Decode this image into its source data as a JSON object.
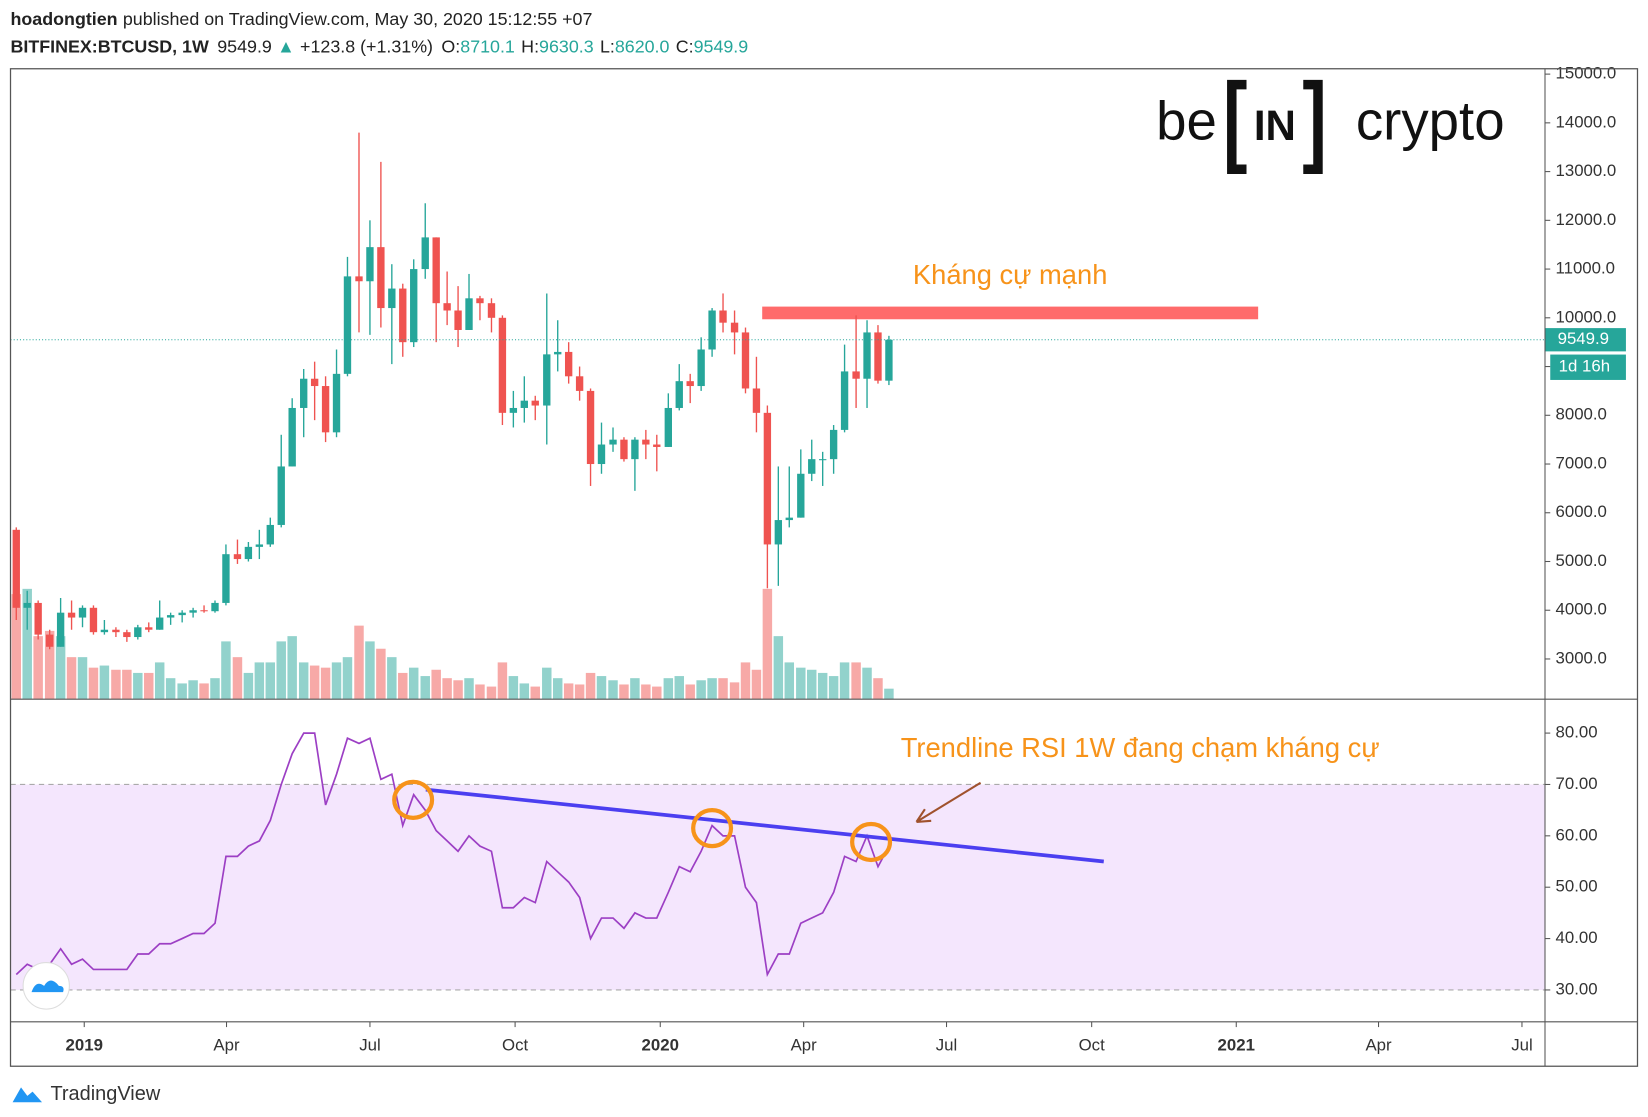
{
  "header": {
    "author": "hoadongtien",
    "published": "published on TradingView.com, May 30, 2020 15:12:55 +07",
    "symbol": "BITFINEX:BTCUSD, 1W",
    "last": "9549.9",
    "arrow": "▲",
    "change": "+123.8 (+1.31%)",
    "o_label": "O:",
    "o_value": "8710.1",
    "h_label": "H:",
    "h_value": "9630.3",
    "l_label": "L:",
    "l_value": "8620.0",
    "c_label": "C:",
    "c_value": "9549.9"
  },
  "logo": {
    "left": "be",
    "middle": "IN",
    "right": "crypto"
  },
  "footer": "TradingView",
  "chart_data": {
    "type": "candlestick",
    "up_color": "#26a69a",
    "down_color": "#ef5350",
    "x": [
      2018.882,
      2018.901,
      2018.92,
      2018.94,
      2018.959,
      2018.978,
      2018.997,
      2019.016,
      2019.035,
      2019.055,
      2019.074,
      2019.093,
      2019.112,
      2019.131,
      2019.15,
      2019.17,
      2019.189,
      2019.208,
      2019.227,
      2019.246,
      2019.266,
      2019.285,
      2019.304,
      2019.323,
      2019.342,
      2019.361,
      2019.381,
      2019.4,
      2019.419,
      2019.438,
      2019.457,
      2019.477,
      2019.496,
      2019.515,
      2019.534,
      2019.553,
      2019.572,
      2019.592,
      2019.611,
      2019.63,
      2019.649,
      2019.668,
      2019.687,
      2019.707,
      2019.726,
      2019.745,
      2019.764,
      2019.783,
      2019.803,
      2019.822,
      2019.841,
      2019.86,
      2019.879,
      2019.898,
      2019.918,
      2019.937,
      2019.956,
      2019.975,
      2019.994,
      2020.014,
      2020.033,
      2020.052,
      2020.071,
      2020.09,
      2020.109,
      2020.129,
      2020.148,
      2020.167,
      2020.186,
      2020.205,
      2020.224,
      2020.244,
      2020.263,
      2020.282,
      2020.301,
      2020.32,
      2020.34,
      2020.359,
      2020.378,
      2020.397
    ],
    "open": [
      5650,
      4050,
      4150,
      3500,
      3250,
      3950,
      3850,
      4050,
      3550,
      3600,
      3550,
      3450,
      3650,
      3600,
      3850,
      3900,
      3950,
      4000,
      3980,
      4150,
      5150,
      5050,
      5300,
      5350,
      5750,
      6950,
      8150,
      8750,
      8600,
      7650,
      8850,
      10850,
      10750,
      11450,
      10200,
      10600,
      9500,
      11000,
      11650,
      10300,
      10150,
      9750,
      10400,
      10300,
      10000,
      8050,
      8150,
      8300,
      8200,
      9250,
      9300,
      8800,
      8500,
      7000,
      7400,
      7500,
      7100,
      7500,
      7400,
      7350,
      8150,
      8700,
      8600,
      9350,
      10150,
      9900,
      9700,
      8550,
      8050,
      5350,
      5850,
      5900,
      6800,
      7100,
      7100,
      7700,
      8900,
      8750,
      9700,
      8710.1
    ],
    "high": [
      5700,
      4400,
      4200,
      3600,
      4250,
      4200,
      4100,
      4100,
      3800,
      3650,
      3600,
      3700,
      3750,
      4200,
      3950,
      4000,
      4050,
      4100,
      4200,
      5350,
      5450,
      5400,
      5650,
      5900,
      7600,
      8350,
      8950,
      9100,
      8800,
      9350,
      11250,
      13800,
      12000,
      13200,
      11100,
      10700,
      11200,
      12350,
      11650,
      10950,
      10650,
      10900,
      10450,
      10400,
      10050,
      8500,
      8800,
      8400,
      10500,
      9950,
      9500,
      9000,
      8550,
      7850,
      7750,
      7550,
      7550,
      7700,
      7600,
      8450,
      9050,
      8850,
      9600,
      10200,
      10500,
      10150,
      9800,
      9200,
      8200,
      6950,
      6950,
      7300,
      7500,
      7250,
      7800,
      9450,
      10050,
      9950,
      9850,
      9630.3
    ],
    "low": [
      3800,
      3600,
      3400,
      3200,
      3250,
      3600,
      3650,
      3500,
      3500,
      3450,
      3350,
      3400,
      3550,
      3600,
      3700,
      3750,
      3850,
      3950,
      3950,
      4100,
      4950,
      5000,
      5050,
      5300,
      5700,
      6950,
      7550,
      7900,
      7450,
      7550,
      8800,
      9700,
      9650,
      9800,
      9050,
      9200,
      9400,
      10800,
      9500,
      9850,
      9400,
      9750,
      9950,
      9700,
      7800,
      7750,
      7850,
      7900,
      7400,
      8900,
      8650,
      8300,
      6550,
      6800,
      7250,
      7050,
      6450,
      7100,
      6850,
      7350,
      8100,
      8250,
      8500,
      9200,
      9700,
      9250,
      8450,
      7650,
      4450,
      4500,
      5700,
      5900,
      6650,
      6550,
      6800,
      7650,
      8150,
      8150,
      8650,
      8620
    ],
    "close": [
      4050,
      4150,
      3500,
      3250,
      3950,
      3850,
      4050,
      3550,
      3600,
      3550,
      3450,
      3650,
      3600,
      3850,
      3900,
      3950,
      4000,
      3980,
      4150,
      5150,
      5050,
      5300,
      5350,
      5750,
      6950,
      8150,
      8750,
      8600,
      7650,
      8850,
      10850,
      10750,
      11450,
      10200,
      10600,
      9500,
      11000,
      11650,
      10300,
      10150,
      9750,
      10400,
      10300,
      10000,
      8050,
      8150,
      8300,
      8200,
      9250,
      9300,
      8800,
      8500,
      7000,
      7400,
      7500,
      7100,
      7500,
      7400,
      7350,
      8150,
      8700,
      8600,
      9350,
      10150,
      9900,
      9700,
      8550,
      8050,
      5350,
      5850,
      5900,
      6800,
      7100,
      7100,
      7700,
      8900,
      8750,
      9700,
      8710.1,
      9549.9
    ],
    "volume": [
      100,
      105,
      60,
      65,
      60,
      40,
      40,
      30,
      32,
      28,
      28,
      25,
      25,
      35,
      20,
      15,
      18,
      15,
      20,
      55,
      40,
      25,
      35,
      35,
      55,
      60,
      35,
      32,
      30,
      35,
      40,
      70,
      55,
      48,
      40,
      25,
      30,
      22,
      28,
      20,
      18,
      20,
      14,
      12,
      35,
      22,
      15,
      12,
      30,
      20,
      15,
      14,
      25,
      22,
      18,
      14,
      20,
      14,
      12,
      20,
      22,
      14,
      18,
      20,
      20,
      16,
      35,
      28,
      105,
      60,
      35,
      30,
      28,
      25,
      22,
      35,
      35,
      30,
      20,
      10
    ],
    "volume_ylim": [
      0,
      600
    ],
    "ylim": [
      2175,
      15110
    ],
    "yticks": [
      {
        "value": 3000,
        "label": "3000.0"
      },
      {
        "value": 4000,
        "label": "4000.0"
      },
      {
        "value": 5000,
        "label": "5000.0"
      },
      {
        "value": 6000,
        "label": "6000.0"
      },
      {
        "value": 7000,
        "label": "7000.0"
      },
      {
        "value": 8000,
        "label": "8000.0"
      },
      {
        "value": 9000,
        "label": "9000.0"
      },
      {
        "value": 10000,
        "label": "10000.0"
      },
      {
        "value": 11000,
        "label": "11000.0"
      },
      {
        "value": 12000,
        "label": "12000.0"
      },
      {
        "value": 13000,
        "label": "13000.0"
      },
      {
        "value": 14000,
        "label": "14000.0"
      },
      {
        "value": 15000,
        "label": "15000.0"
      }
    ],
    "xlim": [
      2018.872,
      2021.536
    ],
    "xticks": [
      2019,
      {
        "value": 2019.247,
        "label": "Apr"
      },
      {
        "value": 2019.496,
        "label": "Jul"
      },
      {
        "value": 2019.748,
        "label": "Oct"
      },
      2020,
      {
        "value": 2020.249,
        "label": "Apr"
      },
      {
        "value": 2020.497,
        "label": "Jul"
      },
      {
        "value": 2020.749,
        "label": "Oct"
      },
      2021,
      {
        "value": 2021.247,
        "label": "Apr"
      },
      {
        "value": 2021.496,
        "label": "Jul"
      }
    ],
    "grid": false,
    "countdown": "1d 16h",
    "resistance": {
      "label": "Kháng cự mạnh",
      "x": [
        2020.177,
        2021.038
      ],
      "low": 9970,
      "high": 10230,
      "color": "#ff6b6b",
      "label_color": "#f7931a"
    },
    "rsi": {
      "type": "line",
      "color": "#9c3fc4",
      "values": [
        33,
        35,
        34,
        35,
        38,
        35,
        36,
        34,
        34,
        34,
        34,
        37,
        37,
        39,
        39,
        40,
        41,
        41,
        43,
        56,
        56,
        58,
        59,
        63,
        70,
        76,
        80,
        80,
        66,
        72,
        79,
        78,
        79,
        71,
        72,
        62,
        68,
        65,
        61,
        59,
        57,
        60,
        58,
        57,
        46,
        46,
        48,
        47,
        55,
        53,
        51,
        48,
        40,
        44,
        44,
        42,
        45,
        44,
        44,
        49,
        54,
        53,
        57,
        62,
        60,
        60,
        50,
        47,
        33,
        37,
        37,
        43,
        44,
        45,
        49,
        56,
        55,
        60,
        54,
        58
      ],
      "ylim": [
        23.8,
        86.6
      ],
      "yticks": [
        {
          "value": 30,
          "label": "30.00"
        },
        {
          "value": 40,
          "label": "40.00"
        },
        {
          "value": 50,
          "label": "50.00"
        },
        {
          "value": 60,
          "label": "60.00"
        },
        {
          "value": 70,
          "label": "70.00"
        },
        {
          "value": 80,
          "label": "80.00"
        }
      ],
      "band": [
        30,
        70
      ],
      "band_color": "#f4e6fd",
      "trendline": {
        "x": [
          2019.593,
          2020.77
        ],
        "values": [
          69,
          55
        ],
        "color": "#4b3ff0"
      },
      "highlights": {
        "x": [
          2019.571,
          2020.09,
          2020.366
        ],
        "values": [
          67,
          61.5,
          58.8
        ],
        "color": "#f7931a"
      },
      "annotation": "Trendline RSI 1W đang chạm kháng cự"
    }
  }
}
